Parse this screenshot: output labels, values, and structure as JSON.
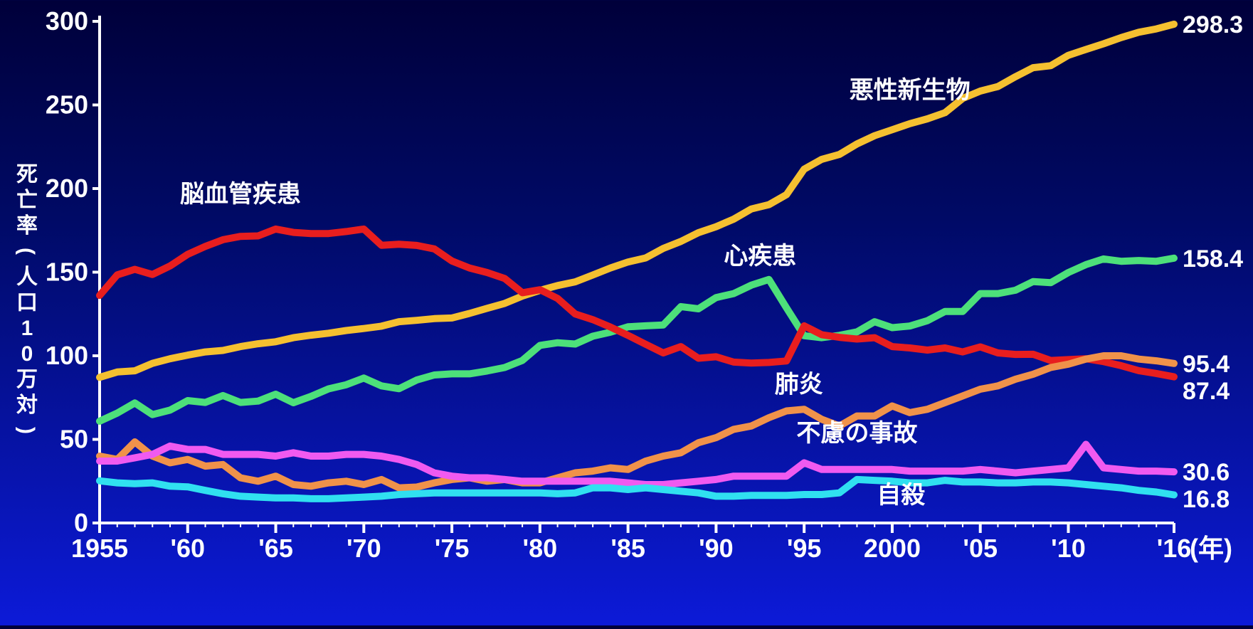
{
  "chart_data": {
    "type": "line",
    "ylabel": "死亡率(人口10万対)",
    "xunit": "(年)",
    "ylim": [
      0,
      300
    ],
    "xlim": [
      1955,
      2016
    ],
    "yticks": [
      0,
      50,
      100,
      150,
      200,
      250,
      300
    ],
    "xticks": [
      {
        "x": 1955,
        "label": "1955"
      },
      {
        "x": 1960,
        "label": "'60"
      },
      {
        "x": 1965,
        "label": "'65"
      },
      {
        "x": 1970,
        "label": "'70"
      },
      {
        "x": 1975,
        "label": "'75"
      },
      {
        "x": 1980,
        "label": "'80"
      },
      {
        "x": 1985,
        "label": "'85"
      },
      {
        "x": 1990,
        "label": "'90"
      },
      {
        "x": 1995,
        "label": "'95"
      },
      {
        "x": 2000,
        "label": "2000"
      },
      {
        "x": 2005,
        "label": "'05"
      },
      {
        "x": 2010,
        "label": "'10"
      },
      {
        "x": 2016,
        "label": "'16"
      }
    ],
    "x": [
      1955,
      1956,
      1957,
      1958,
      1959,
      1960,
      1961,
      1962,
      1963,
      1964,
      1965,
      1966,
      1967,
      1968,
      1969,
      1970,
      1971,
      1972,
      1973,
      1974,
      1975,
      1976,
      1977,
      1978,
      1979,
      1980,
      1981,
      1982,
      1983,
      1984,
      1985,
      1986,
      1987,
      1988,
      1989,
      1990,
      1991,
      1992,
      1993,
      1994,
      1995,
      1996,
      1997,
      1998,
      1999,
      2000,
      2001,
      2002,
      2003,
      2004,
      2005,
      2006,
      2007,
      2008,
      2009,
      2010,
      2011,
      2012,
      2013,
      2014,
      2015,
      2016
    ],
    "series": [
      {
        "name": "悪性新生物",
        "color": "#f5c030",
        "end_label": "298.3",
        "values": [
          87.1,
          90.3,
          91.0,
          95.5,
          98.2,
          100.4,
          102.3,
          103.2,
          105.5,
          107.2,
          108.4,
          110.8,
          112.3,
          113.5,
          115.1,
          116.3,
          117.7,
          120.4,
          121.2,
          122.2,
          122.6,
          125.3,
          128.4,
          131.3,
          135.7,
          139.1,
          142.0,
          144.2,
          148.3,
          152.5,
          156.1,
          158.5,
          164.2,
          168.4,
          173.6,
          177.2,
          181.7,
          187.8,
          190.4,
          196.4,
          211.6,
          217.5,
          220.4,
          226.7,
          231.6,
          235.2,
          238.8,
          241.7,
          245.4,
          253.9,
          258.3,
          261.0,
          266.9,
          272.3,
          273.5,
          279.7,
          283.2,
          286.6,
          290.3,
          293.5,
          295.5,
          298.3
        ]
      },
      {
        "name": "心疾患",
        "color": "#4de07a",
        "end_label": "158.4",
        "values": [
          60.9,
          65.7,
          71.8,
          64.8,
          67.5,
          73.2,
          72.1,
          76.2,
          72.1,
          72.9,
          77.0,
          71.9,
          75.7,
          80.2,
          82.7,
          86.7,
          82.0,
          80.3,
          85.5,
          88.5,
          89.2,
          89.2,
          90.9,
          93.0,
          97.2,
          106.2,
          107.8,
          107.0,
          111.7,
          114.1,
          117.3,
          117.9,
          118.4,
          129.4,
          128.1,
          134.8,
          137.2,
          142.2,
          145.6,
          128.6,
          112.0,
          110.8,
          112.2,
          114.3,
          120.4,
          116.8,
          117.8,
          121.0,
          126.5,
          126.5,
          137.2,
          137.2,
          139.2,
          144.4,
          143.7,
          149.8,
          154.5,
          157.9,
          156.5,
          157.0,
          156.5,
          158.4
        ]
      },
      {
        "name": "脳血管疾患",
        "color": "#e81e1e",
        "end_label": "87.4",
        "values": [
          136.1,
          148.4,
          151.7,
          148.6,
          153.7,
          160.7,
          165.4,
          169.4,
          171.4,
          171.7,
          175.8,
          173.8,
          173.1,
          173.1,
          174.3,
          175.8,
          166.1,
          166.7,
          166.0,
          163.9,
          156.7,
          152.5,
          149.8,
          146.2,
          137.7,
          139.5,
          134.3,
          125.0,
          121.6,
          117.2,
          112.2,
          106.9,
          101.7,
          105.5,
          98.5,
          99.4,
          96.2,
          95.6,
          96.0,
          96.9,
          117.9,
          112.6,
          111.0,
          110.0,
          110.8,
          105.5,
          104.7,
          103.4,
          104.7,
          102.3,
          105.3,
          101.7,
          100.8,
          100.9,
          97.2,
          97.7,
          98.2,
          96.5,
          94.1,
          91.1,
          89.4,
          87.4
        ]
      },
      {
        "name": "肺炎",
        "color": "#f0924a",
        "end_label": "95.4",
        "values": [
          40.0,
          38.0,
          48.5,
          40.0,
          36.0,
          38.0,
          34.0,
          35.0,
          27.0,
          25.0,
          28.0,
          23.0,
          22.0,
          24.0,
          25.0,
          23.0,
          26.0,
          21.0,
          21.5,
          24.0,
          26.0,
          27.0,
          25.0,
          26.0,
          24.0,
          24.0,
          27.0,
          30.0,
          31.0,
          33.0,
          32.0,
          37.0,
          40.0,
          42.0,
          48.0,
          51.0,
          56.0,
          58.0,
          63.0,
          67.0,
          68.0,
          62.0,
          58.0,
          64.0,
          64.0,
          70.0,
          66.0,
          68.0,
          72.0,
          76.0,
          80.0,
          82.0,
          86.0,
          89.0,
          93.0,
          95.0,
          98.0,
          100.0,
          100.0,
          98.0,
          97.0,
          95.4
        ]
      },
      {
        "name": "不慮の事故",
        "color": "#f05af0",
        "end_label": "30.6",
        "values": [
          37.0,
          37.0,
          39.0,
          41.0,
          46.0,
          44.0,
          44.0,
          41.0,
          41.0,
          41.0,
          40.0,
          42.0,
          40.0,
          40.0,
          41.0,
          41.0,
          40.0,
          38.0,
          35.0,
          30.0,
          28.0,
          27.0,
          27.0,
          26.0,
          25.0,
          25.0,
          25.0,
          25.0,
          25.0,
          25.0,
          24.0,
          23.0,
          23.0,
          24.0,
          25.0,
          26.0,
          28.0,
          28.0,
          28.0,
          28.0,
          36.0,
          32.0,
          32.0,
          32.0,
          32.0,
          32.0,
          31.0,
          31.0,
          31.0,
          31.0,
          32.0,
          31.0,
          30.0,
          31.0,
          32.0,
          33.0,
          47.0,
          33.0,
          32.0,
          31.0,
          31.0,
          30.6
        ]
      },
      {
        "name": "自殺",
        "color": "#30e0f0",
        "end_label": "16.8",
        "values": [
          25.2,
          24.0,
          23.5,
          24.0,
          22.0,
          21.6,
          19.5,
          17.5,
          16.0,
          15.5,
          15.0,
          15.0,
          14.5,
          14.5,
          15.0,
          15.5,
          16.0,
          17.0,
          17.5,
          18.0,
          18.0,
          18.0,
          18.0,
          18.0,
          18.0,
          18.0,
          17.5,
          18.0,
          21.0,
          21.0,
          20.0,
          21.0,
          20.0,
          19.0,
          18.0,
          16.0,
          16.0,
          16.5,
          16.5,
          16.5,
          17.0,
          17.0,
          18.0,
          26.0,
          25.5,
          25.0,
          24.0,
          24.0,
          25.5,
          24.5,
          24.5,
          24.0,
          24.0,
          24.5,
          24.5,
          24.0,
          23.0,
          22.0,
          21.0,
          19.5,
          18.5,
          16.8
        ]
      }
    ],
    "annotations": [
      {
        "text": "悪性新生物",
        "series": "悪性新生物",
        "x": 2001,
        "y": 254
      },
      {
        "text": "脳血管疾患",
        "series": "脳血管疾患",
        "x": 1963,
        "y": 192
      },
      {
        "text": "心疾患",
        "series": "心疾患",
        "x": 1992.5,
        "y": 155
      },
      {
        "text": "肺炎",
        "series": "肺炎",
        "x": 1994.7,
        "y": 78
      },
      {
        "text": "不慮の事故",
        "series": "不慮の事故",
        "x": 1998,
        "y": 49
      },
      {
        "text": "自殺",
        "series": "自殺",
        "x": 2000.5,
        "y": 12
      }
    ]
  }
}
